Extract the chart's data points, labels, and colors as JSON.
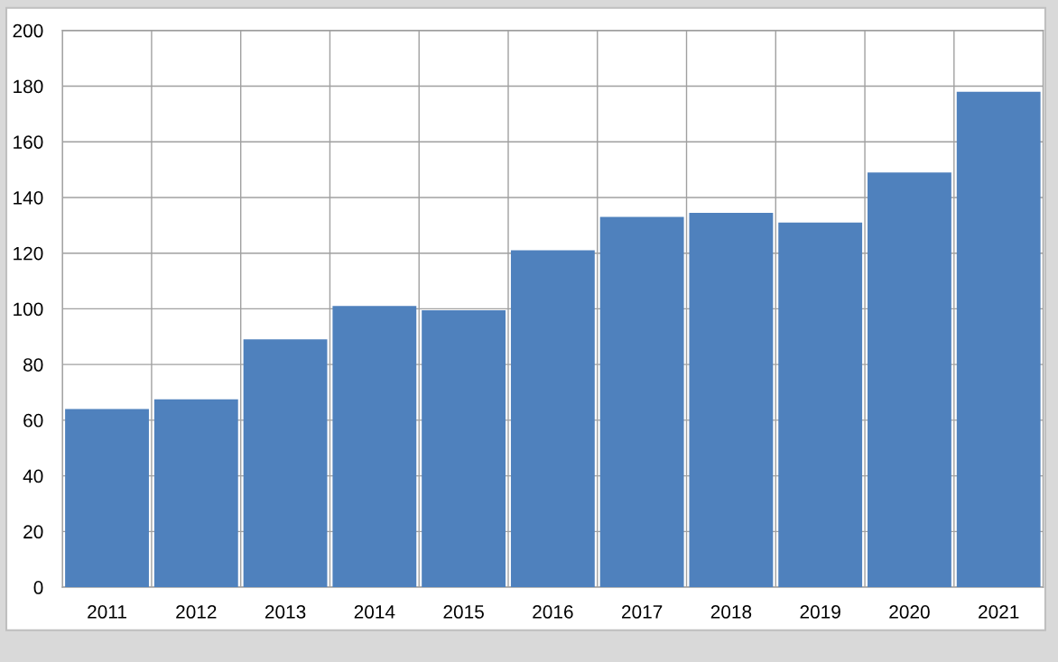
{
  "chart_data": {
    "type": "bar",
    "categories": [
      "2011",
      "2012",
      "2013",
      "2014",
      "2015",
      "2016",
      "2017",
      "2018",
      "2019",
      "2020",
      "2021"
    ],
    "values": [
      64,
      67.5,
      89,
      101,
      99.5,
      121,
      133,
      134.5,
      131,
      149,
      178
    ],
    "color": "#4f81bd",
    "ylim": [
      0,
      200
    ],
    "yticks": [
      0,
      20,
      40,
      60,
      80,
      100,
      120,
      140,
      160,
      180,
      200
    ],
    "grid": true
  }
}
